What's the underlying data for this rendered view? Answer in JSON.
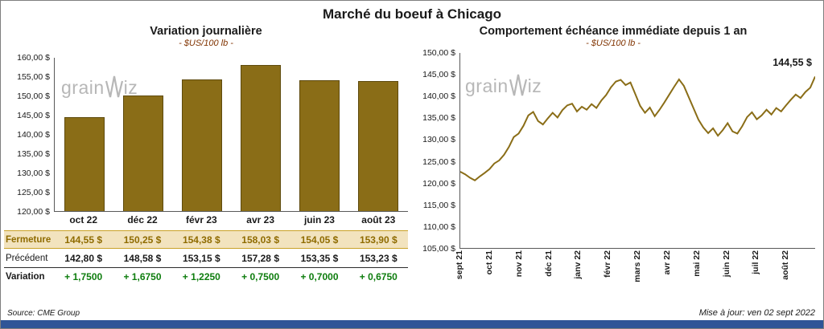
{
  "page": {
    "title": "Marché du boeuf à Chicago",
    "source": "Source: CME Group",
    "updated": "Mise à jour: ven 02 sept 2022",
    "watermark_left": "grain",
    "watermark_right": "iz"
  },
  "colors": {
    "bar": "#8A6D17",
    "line": "#8A6D17",
    "fermeture_bg": "#F2E3BE",
    "fermeture_text": "#8F6B00",
    "variation_text": "#0E7D0E",
    "footer_bar": "#2F5597"
  },
  "table": {
    "rows": [
      {
        "label": "Fermeture",
        "values": [
          "144,55  $",
          "150,25  $",
          "154,38  $",
          "158,03  $",
          "154,05  $",
          "153,90  $"
        ]
      },
      {
        "label": "Précédent",
        "values": [
          "142,80  $",
          "148,58  $",
          "153,15  $",
          "157,28  $",
          "153,35  $",
          "153,23  $"
        ]
      },
      {
        "label": "Variation",
        "values": [
          "+ 1,7500",
          "+ 1,6750",
          "+ 1,2250",
          "+ 0,7500",
          "+ 0,7000",
          "+ 0,6750"
        ]
      }
    ]
  },
  "chart_data": [
    {
      "type": "bar",
      "title": "Variation journalière",
      "subtitle": "- $US/100 lb -",
      "categories": [
        "oct 22",
        "déc 22",
        "févr 23",
        "avr 23",
        "juin 23",
        "août 23"
      ],
      "values": [
        144.55,
        150.25,
        154.38,
        158.03,
        154.05,
        153.9
      ],
      "ylim": [
        120,
        160
      ],
      "y_ticks": [
        "160,00 $",
        "155,00 $",
        "150,00 $",
        "145,00 $",
        "140,00 $",
        "135,00 $",
        "130,00 $",
        "125,00 $",
        "120,00 $"
      ],
      "grid": false,
      "legend": false
    },
    {
      "type": "line",
      "title": "Comportement échéance immédiate depuis 1 an",
      "subtitle": "- $US/100 lb -",
      "x_labels": [
        "sept 21",
        "oct 21",
        "nov 21",
        "déc 21",
        "janv 22",
        "févr 22",
        "mars 22",
        "avr 22",
        "mai 22",
        "juin 22",
        "juil 22",
        "août 22"
      ],
      "values": [
        122.6,
        122.0,
        121.2,
        120.6,
        121.5,
        122.3,
        123.2,
        124.5,
        125.2,
        126.5,
        128.3,
        130.6,
        131.4,
        133.2,
        135.6,
        136.4,
        134.3,
        133.5,
        134.9,
        136.2,
        135.1,
        136.8,
        137.9,
        138.3,
        136.5,
        137.6,
        136.9,
        138.2,
        137.3,
        139.0,
        140.3,
        142.1,
        143.4,
        143.8,
        142.6,
        143.2,
        140.5,
        137.8,
        136.2,
        137.4,
        135.4,
        136.9,
        138.6,
        140.4,
        142.2,
        143.9,
        142.4,
        139.8,
        137.2,
        134.6,
        132.8,
        131.5,
        132.6,
        130.9,
        132.2,
        133.8,
        131.9,
        131.4,
        133.1,
        135.2,
        136.3,
        134.7,
        135.6,
        136.9,
        135.8,
        137.3,
        136.5,
        137.9,
        139.2,
        140.4,
        139.6,
        141.0,
        142.0,
        144.55
      ],
      "ylim": [
        105,
        150
      ],
      "y_ticks": [
        "150,00 $",
        "145,00 $",
        "140,00 $",
        "135,00 $",
        "130,00 $",
        "125,00 $",
        "120,00 $",
        "115,00 $",
        "110,00 $",
        "105,00 $"
      ],
      "annotation": "144,55 $",
      "grid": false,
      "legend": false
    }
  ]
}
